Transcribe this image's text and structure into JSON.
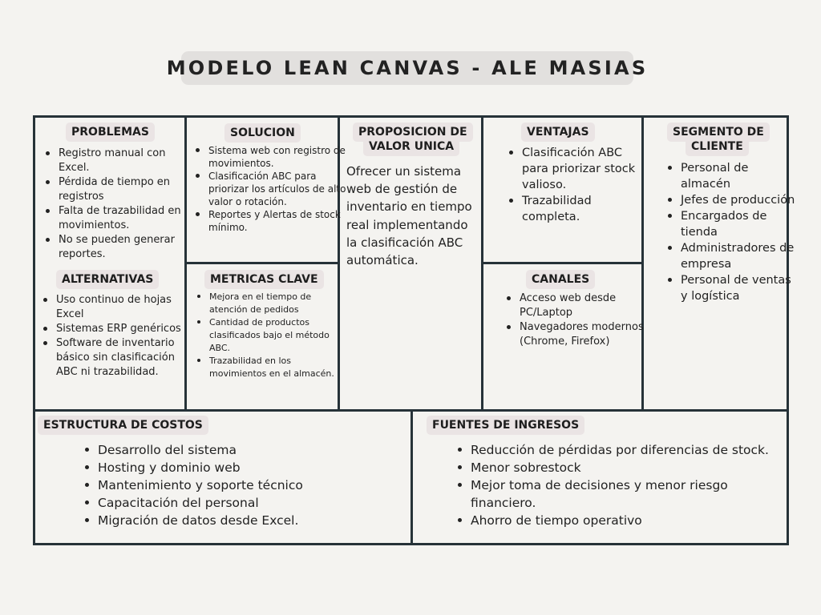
{
  "title": "MODELO LEAN CANVAS - ALE MASIAS",
  "problemas": {
    "label": "PROBLEMAS",
    "items": [
      "Registro manual con Excel.",
      "Pérdida de tiempo en registros",
      "Falta de trazabilidad en movimientos.",
      "No se pueden generar reportes."
    ]
  },
  "alternativas": {
    "label": "ALTERNATIVAS",
    "items": [
      "Uso continuo de hojas Excel",
      "Sistemas ERP genéricos",
      "Software de inventario básico sin clasificación ABC ni trazabilidad."
    ]
  },
  "solucion": {
    "label": "SOLUCION",
    "items": [
      "Sistema web con registro de movimientos.",
      "Clasificación ABC para priorizar los artículos de alto valor o rotación.",
      "Reportes y Alertas de stock mínimo."
    ]
  },
  "metricas_clave": {
    "label": "METRICAS CLAVE",
    "items": [
      "Mejora en el tiempo de atención de pedidos",
      "Cantidad de productos clasificados bajo el método ABC.",
      "Trazabilidad en los movimientos en el almacén."
    ]
  },
  "propuesta": {
    "label_line1": "PROPOSICION DE",
    "label_line2": "VALOR UNICA",
    "text": "Ofrecer un sistema web de gestión de inventario en tiempo real implementando la clasificación ABC automática."
  },
  "ventajas": {
    "label": "VENTAJAS",
    "items": [
      "Clasificación ABC para priorizar stock valioso.",
      "Trazabilidad completa."
    ]
  },
  "canales": {
    "label": "CANALES",
    "items": [
      "Acceso web desde PC/Laptop",
      "Navegadores modernos (Chrome, Firefox)"
    ]
  },
  "segmento": {
    "label_line1": "SEGMENTO DE",
    "label_line2": "CLIENTE",
    "items": [
      "Personal de almacén",
      "Jefes de producción",
      "Encargados de tienda",
      "Administradores de empresa",
      "Personal de ventas y logística"
    ]
  },
  "costos": {
    "label": "ESTRUCTURA DE COSTOS",
    "items": [
      "Desarrollo del sistema",
      "Hosting y dominio web",
      "Mantenimiento y soporte técnico",
      "Capacitación del personal",
      "Migración de datos desde Excel."
    ]
  },
  "ingresos": {
    "label": "FUENTES DE INGRESOS",
    "items": [
      "Reducción de pérdidas por diferencias de stock.",
      "Menor sobrestock",
      "Mejor toma de decisiones y menor riesgo financiero.",
      "Ahorro de tiempo operativo"
    ]
  },
  "colors": {
    "background": "#f4f3f0",
    "grid_lines": "#263238",
    "title_pill": "#e2e0de",
    "label_pill": "#eae4e4"
  }
}
